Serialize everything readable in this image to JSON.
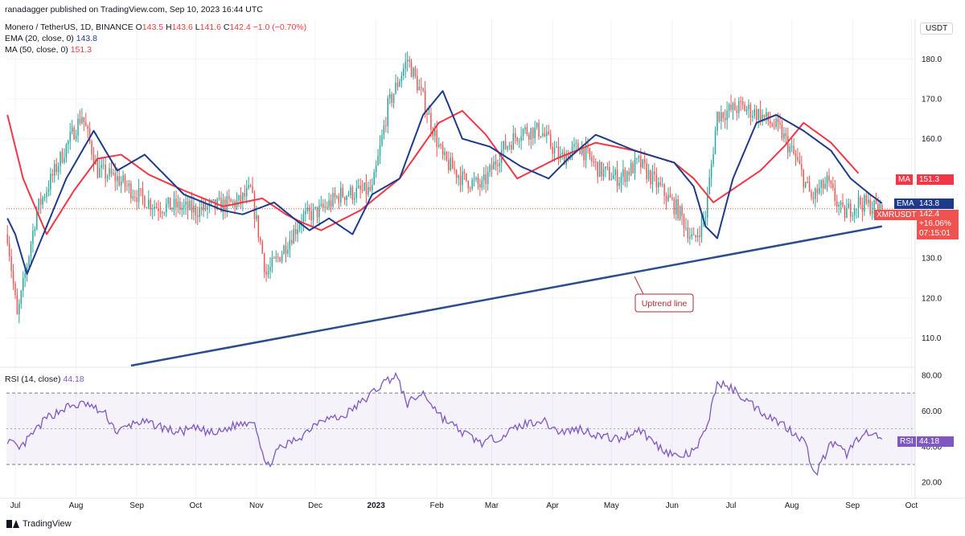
{
  "publisher": "ranadagger published on TradingView.com, Sep 10, 2023 16:44 UTC",
  "symbol_line": {
    "name": "Monero / TetherUS, 1D, BINANCE",
    "o_label": "O",
    "o": "143.5",
    "h_label": "H",
    "h": "143.6",
    "l_label": "L",
    "l": "141.6",
    "c_label": "C",
    "c": "142.4",
    "change": "−1.0 (−0.70%)"
  },
  "ema_line": {
    "label": "EMA (20, close, 0)",
    "value": "143.8"
  },
  "ma_line": {
    "label": "MA (50, close, 0)",
    "value": "151.3"
  },
  "rsi_line": {
    "label": "RSI (14, close)",
    "value": "44.18"
  },
  "currency": "USDT",
  "tags": {
    "ma_name": "MA",
    "ma_value": "151.3",
    "ema_name": "EMA",
    "ema_value": "143.8",
    "sym_name": "XMRUSDT",
    "price": "142.4",
    "pct": "+16.06%",
    "countdown": "07:15:01",
    "rsi_name": "RSI",
    "rsi_value": "44.18"
  },
  "annotation": "Uptrend line",
  "brand": "TradingView",
  "colors": {
    "ema": "#1e3a8a",
    "ma": "#f23645",
    "rsi": "#7e57c2",
    "up": "#26a69a",
    "down": "#ef5350",
    "trendline": "#2a4d8f"
  },
  "chart_data": [
    {
      "type": "candlestick",
      "title": "Monero / TetherUS, 1D, BINANCE",
      "x_ticks": [
        "Jul",
        "Aug",
        "Sep",
        "Oct",
        "Nov",
        "Dec",
        "2023",
        "Feb",
        "Mar",
        "Apr",
        "May",
        "Jun",
        "Jul",
        "Aug",
        "Sep",
        "Oct"
      ],
      "y_ticks": [
        "110.0",
        "120.0",
        "130.0",
        "140.0",
        "150.0",
        "160.0",
        "170.0",
        "180.0"
      ],
      "ylim": [
        103,
        190
      ],
      "series": [
        {
          "name": "EMA (20, close, 0)",
          "key_points": [
            [
              0,
              140
            ],
            [
              4,
              136
            ],
            [
              10,
              126
            ],
            [
              30,
              150
            ],
            [
              44,
              162
            ],
            [
              56,
              152
            ],
            [
              70,
              156
            ],
            [
              90,
              146
            ],
            [
              110,
              142
            ],
            [
              120,
              141
            ],
            [
              136,
              144
            ],
            [
              146,
              140
            ],
            [
              154,
              137
            ],
            [
              164,
              140
            ],
            [
              176,
              136
            ],
            [
              186,
              146
            ],
            [
              200,
              150
            ],
            [
              212,
              166
            ],
            [
              222,
              172
            ],
            [
              232,
              160
            ],
            [
              246,
              158
            ],
            [
              262,
              153
            ],
            [
              276,
              150
            ],
            [
              286,
              155
            ],
            [
              300,
              161
            ],
            [
              320,
              157
            ],
            [
              340,
              154
            ],
            [
              350,
              148
            ],
            [
              356,
              138
            ],
            [
              362,
              135
            ],
            [
              370,
              150
            ],
            [
              382,
              164
            ],
            [
              392,
              166
            ],
            [
              406,
              162
            ],
            [
              420,
              157
            ],
            [
              430,
              150
            ],
            [
              440,
              146
            ],
            [
              446,
              143.8
            ]
          ]
        },
        {
          "name": "MA (50, close, 0)",
          "key_points": [
            [
              0,
              166
            ],
            [
              8,
              150
            ],
            [
              20,
              136
            ],
            [
              34,
              147
            ],
            [
              46,
              155
            ],
            [
              58,
              156
            ],
            [
              72,
              151
            ],
            [
              90,
              147
            ],
            [
              110,
              143
            ],
            [
              130,
              145
            ],
            [
              142,
              141
            ],
            [
              150,
              139
            ],
            [
              160,
              137
            ],
            [
              180,
              142
            ],
            [
              200,
              150
            ],
            [
              220,
              164
            ],
            [
              232,
              167
            ],
            [
              244,
              161
            ],
            [
              260,
              150
            ],
            [
              280,
              155
            ],
            [
              300,
              159
            ],
            [
              320,
              157
            ],
            [
              340,
              154
            ],
            [
              350,
              150
            ],
            [
              360,
              144
            ],
            [
              372,
              148
            ],
            [
              384,
              152
            ],
            [
              396,
              158
            ],
            [
              406,
              164
            ],
            [
              420,
              159
            ],
            [
              434,
              151.3
            ]
          ]
        },
        {
          "name": "Uptrend line",
          "key_points": [
            [
              63,
              103
            ],
            [
              446,
              138
            ]
          ]
        }
      ],
      "last": {
        "open": 143.5,
        "high": 143.6,
        "low": 141.6,
        "close": 142.4
      },
      "key_closes": [
        [
          0,
          136
        ],
        [
          5,
          115
        ],
        [
          15,
          142
        ],
        [
          28,
          156
        ],
        [
          38,
          166
        ],
        [
          46,
          152
        ],
        [
          56,
          150
        ],
        [
          66,
          146
        ],
        [
          76,
          143
        ],
        [
          86,
          143
        ],
        [
          96,
          142
        ],
        [
          106,
          143
        ],
        [
          118,
          144
        ],
        [
          124,
          147
        ],
        [
          132,
          126
        ],
        [
          138,
          130
        ],
        [
          150,
          140
        ],
        [
          160,
          142
        ],
        [
          170,
          146
        ],
        [
          186,
          147
        ],
        [
          194,
          168
        ],
        [
          204,
          180
        ],
        [
          212,
          170
        ],
        [
          222,
          155
        ],
        [
          232,
          150
        ],
        [
          242,
          148
        ],
        [
          252,
          157
        ],
        [
          262,
          162
        ],
        [
          272,
          162
        ],
        [
          282,
          155
        ],
        [
          292,
          158
        ],
        [
          302,
          152
        ],
        [
          312,
          150
        ],
        [
          322,
          154
        ],
        [
          332,
          148
        ],
        [
          342,
          142
        ],
        [
          350,
          134
        ],
        [
          356,
          141
        ],
        [
          362,
          166
        ],
        [
          374,
          168
        ],
        [
          384,
          166
        ],
        [
          394,
          162
        ],
        [
          402,
          155
        ],
        [
          410,
          145
        ],
        [
          418,
          149
        ],
        [
          426,
          141
        ],
        [
          434,
          144
        ],
        [
          446,
          142.4
        ]
      ]
    },
    {
      "type": "line",
      "title": "RSI (14, close)",
      "y_ticks": [
        "20.00",
        "40.00",
        "60.00",
        "80.00"
      ],
      "ylim": [
        12,
        84
      ],
      "bands": [
        30,
        70
      ],
      "series": [
        {
          "name": "RSI (14, close)",
          "key_points": [
            [
              0,
              44
            ],
            [
              6,
              38
            ],
            [
              12,
              46
            ],
            [
              20,
              56
            ],
            [
              30,
              62
            ],
            [
              40,
              64
            ],
            [
              50,
              58
            ],
            [
              56,
              48
            ],
            [
              66,
              54
            ],
            [
              76,
              52
            ],
            [
              86,
              48
            ],
            [
              96,
              50
            ],
            [
              106,
              47
            ],
            [
              116,
              52
            ],
            [
              126,
              55
            ],
            [
              132,
              28
            ],
            [
              138,
              38
            ],
            [
              150,
              46
            ],
            [
              160,
              56
            ],
            [
              170,
              56
            ],
            [
              182,
              66
            ],
            [
              192,
              76
            ],
            [
              198,
              80
            ],
            [
              204,
              64
            ],
            [
              212,
              70
            ],
            [
              222,
              56
            ],
            [
              232,
              48
            ],
            [
              242,
              42
            ],
            [
              252,
              46
            ],
            [
              262,
              52
            ],
            [
              272,
              55
            ],
            [
              282,
              48
            ],
            [
              292,
              50
            ],
            [
              302,
              46
            ],
            [
              312,
              44
            ],
            [
              322,
              50
            ],
            [
              332,
              40
            ],
            [
              342,
              34
            ],
            [
              350,
              37
            ],
            [
              356,
              48
            ],
            [
              362,
              76
            ],
            [
              370,
              72
            ],
            [
              384,
              60
            ],
            [
              396,
              52
            ],
            [
              406,
              44
            ],
            [
              412,
              24
            ],
            [
              420,
              42
            ],
            [
              428,
              36
            ],
            [
              436,
              48
            ],
            [
              446,
              44.18
            ]
          ]
        }
      ]
    }
  ]
}
